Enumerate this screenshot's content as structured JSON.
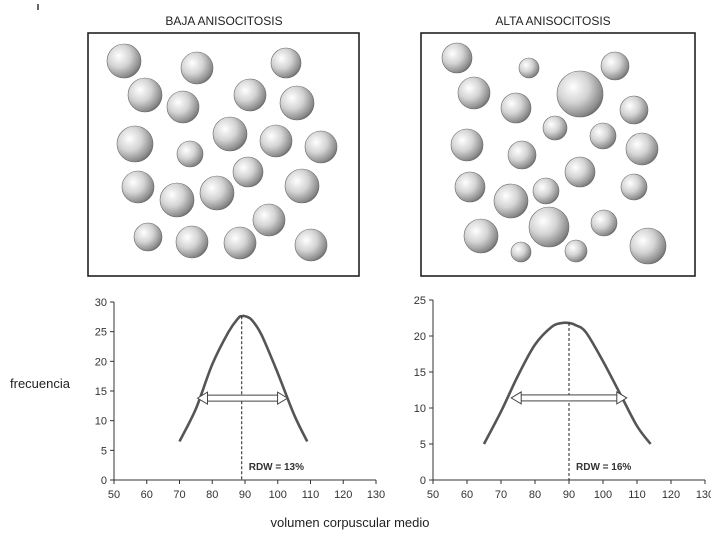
{
  "panels": [
    {
      "title": "BAJA ANISOCITOSIS",
      "cell_radii": [
        17,
        16,
        15,
        17,
        16,
        16,
        17,
        18,
        13,
        17,
        16,
        16,
        16,
        17,
        17,
        15,
        17,
        14,
        16,
        16,
        16,
        16
      ],
      "chart_data": {
        "type": "line",
        "xlim": [
          50,
          130
        ],
        "ylim": [
          0,
          30
        ],
        "x_ticks": [
          50,
          60,
          70,
          80,
          90,
          100,
          110,
          120,
          130
        ],
        "y_ticks": [
          0,
          5,
          10,
          15,
          20,
          25,
          30
        ],
        "series": [
          {
            "x": [
              70,
              75,
              80,
              85,
              88,
              89,
              90,
              92,
              95,
              100,
              105,
              109
            ],
            "values": [
              6.5,
              12,
              19.5,
              25,
              27.3,
              27.6,
              27.6,
              27,
              24.5,
              18,
              11,
              6.5
            ]
          }
        ],
        "peak_x": 89,
        "width_arrow": {
          "y": 13.8,
          "x_start": 75.5,
          "x_end": 103
        },
        "annotation": "RDW = 13%"
      }
    },
    {
      "title": "ALTA ANISOCITOSIS",
      "cell_radii": [
        15,
        10,
        14,
        16,
        15,
        23,
        9,
        12,
        16,
        14,
        13,
        16,
        15,
        17,
        13,
        15,
        13,
        17,
        10,
        20,
        13,
        18,
        11,
        14
      ],
      "chart_data": {
        "type": "line",
        "xlim": [
          50,
          130
        ],
        "ylim": [
          0,
          25
        ],
        "x_ticks": [
          50,
          60,
          70,
          80,
          90,
          100,
          110,
          120,
          130
        ],
        "y_ticks": [
          0,
          5,
          10,
          15,
          20,
          25
        ],
        "series": [
          {
            "x": [
              65,
              70,
              75,
              80,
              85,
              88,
              90,
              92,
              95,
              100,
              105,
              110,
              114
            ],
            "values": [
              5,
              9.5,
              14.5,
              18.8,
              21.3,
              21.8,
              21.8,
              21.5,
              20.5,
              16.5,
              12,
              7.5,
              5
            ]
          }
        ],
        "peak_x": 90,
        "width_arrow": {
          "y": 11.4,
          "x_start": 73,
          "x_end": 107
        },
        "annotation": "RDW = 16%"
      }
    }
  ],
  "ylabel": "frecuencia",
  "xlabel": "volumen corpuscular medio"
}
